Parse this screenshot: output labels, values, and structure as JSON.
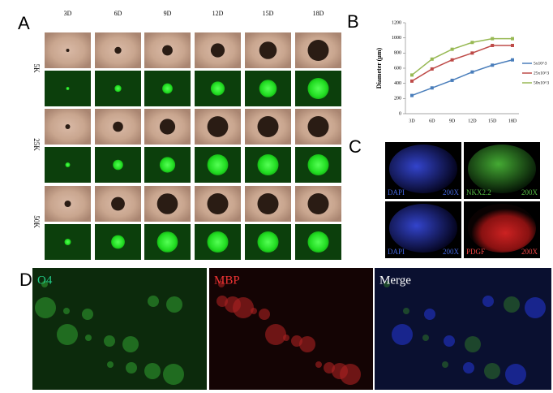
{
  "panels": {
    "A": {
      "label": "A",
      "columns": [
        "3D",
        "6D",
        "9D",
        "12D",
        "15D",
        "18D"
      ],
      "rows": [
        "5K",
        "25K",
        "50K"
      ]
    },
    "C": {
      "label": "C",
      "images": [
        {
          "stain": "DAPI",
          "mag": "200X"
        },
        {
          "stain": "NKX2.2",
          "mag": "200X"
        },
        {
          "stain": "DAPI",
          "mag": "200X"
        },
        {
          "stain": "PDGF",
          "mag": "200X"
        }
      ]
    },
    "D": {
      "label": "D",
      "images": [
        "O4",
        "MBP",
        "Merge"
      ]
    }
  },
  "chart_data": {
    "type": "line",
    "label": "B",
    "y_label": "Diameter (μm)",
    "categories": [
      "3D",
      "6D",
      "9D",
      "12D",
      "15D",
      "18D"
    ],
    "series": [
      {
        "name": "5x10^3",
        "color": "#4a7ebb",
        "values": [
          240,
          340,
          440,
          550,
          640,
          710
        ]
      },
      {
        "name": "25x10^3",
        "color": "#be4b48",
        "values": [
          430,
          590,
          710,
          800,
          900,
          900
        ]
      },
      {
        "name": "50x10^3",
        "color": "#98b954",
        "values": [
          510,
          720,
          850,
          940,
          990,
          990
        ]
      }
    ],
    "ylim": [
      0,
      1200
    ],
    "yticks": [
      0,
      200,
      400,
      600,
      800,
      1000,
      1200
    ],
    "grid": false,
    "legend": "right"
  }
}
